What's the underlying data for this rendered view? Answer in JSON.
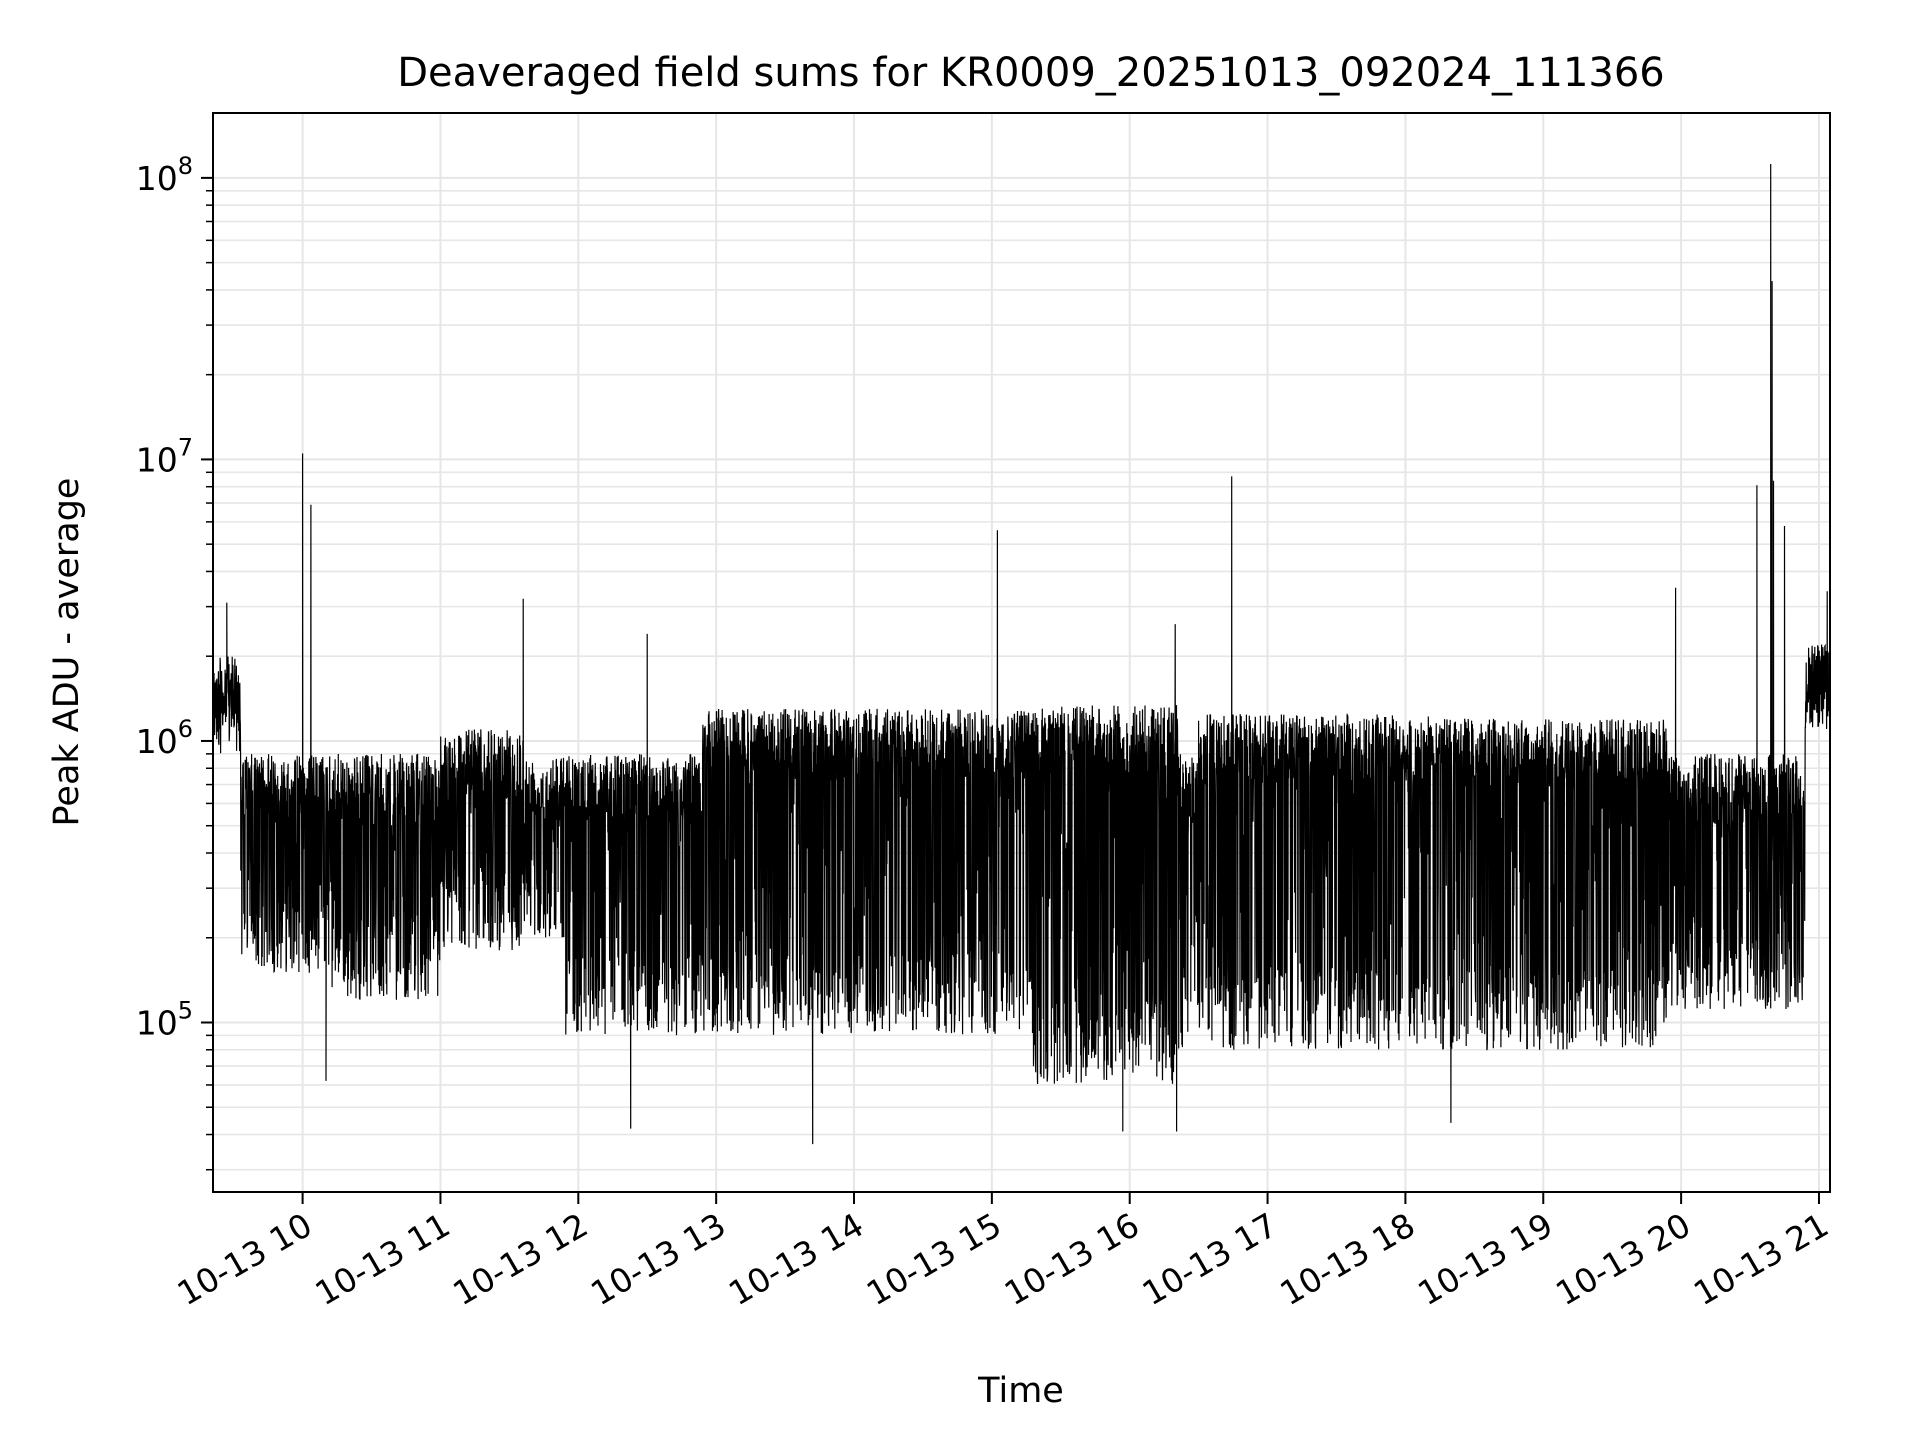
{
  "chart_data": {
    "type": "line",
    "title": "Deaveraged field sums for KR0009_20251013_092024_111366",
    "xlabel": "Time",
    "ylabel": "Peak ADU - average",
    "yscale": "log",
    "ylim": [
      25000,
      170000000
    ],
    "xlim_hours": [
      9.35,
      21.08
    ],
    "grid": true,
    "line_color": "#000000",
    "grid_color": "#e6e6e6",
    "x_ticks": [
      {
        "hour": 10,
        "label": "10-13 10"
      },
      {
        "hour": 11,
        "label": "10-13 11"
      },
      {
        "hour": 12,
        "label": "10-13 12"
      },
      {
        "hour": 13,
        "label": "10-13 13"
      },
      {
        "hour": 14,
        "label": "10-13 14"
      },
      {
        "hour": 15,
        "label": "10-13 15"
      },
      {
        "hour": 16,
        "label": "10-13 16"
      },
      {
        "hour": 17,
        "label": "10-13 17"
      },
      {
        "hour": 18,
        "label": "10-13 18"
      },
      {
        "hour": 19,
        "label": "10-13 19"
      },
      {
        "hour": 20,
        "label": "10-13 20"
      },
      {
        "hour": 21,
        "label": "10-13 21"
      }
    ],
    "y_ticks": [
      {
        "value": 100000,
        "base": "10",
        "exp": "5"
      },
      {
        "value": 1000000,
        "base": "10",
        "exp": "6"
      },
      {
        "value": 10000000,
        "base": "10",
        "exp": "7"
      },
      {
        "value": 100000000,
        "base": "10",
        "exp": "8"
      }
    ],
    "segments": [
      {
        "start": 9.35,
        "end": 9.55,
        "high": 2000000,
        "low": 900000
      },
      {
        "start": 9.55,
        "end": 10.2,
        "high": 900000,
        "low": 150000
      },
      {
        "start": 10.2,
        "end": 11.0,
        "high": 900000,
        "low": 120000
      },
      {
        "start": 11.0,
        "end": 11.6,
        "high": 1100000,
        "low": 180000
      },
      {
        "start": 11.6,
        "end": 11.9,
        "high": 900000,
        "low": 200000
      },
      {
        "start": 11.9,
        "end": 12.9,
        "high": 900000,
        "low": 90000
      },
      {
        "start": 12.9,
        "end": 15.3,
        "high": 1300000,
        "low": 90000
      },
      {
        "start": 15.3,
        "end": 16.35,
        "high": 1350000,
        "low": 60000
      },
      {
        "start": 16.35,
        "end": 16.5,
        "high": 900000,
        "low": 80000
      },
      {
        "start": 16.5,
        "end": 18.3,
        "high": 1250000,
        "low": 80000
      },
      {
        "start": 18.3,
        "end": 19.9,
        "high": 1200000,
        "low": 80000
      },
      {
        "start": 19.9,
        "end": 20.9,
        "high": 900000,
        "low": 110000
      },
      {
        "start": 20.9,
        "end": 21.08,
        "high": 2200000,
        "low": 1100000
      }
    ],
    "spikes": [
      {
        "hour": 9.45,
        "value": 3100000
      },
      {
        "hour": 10.0,
        "value": 10500000
      },
      {
        "hour": 10.06,
        "value": 6900000
      },
      {
        "hour": 11.6,
        "value": 3200000
      },
      {
        "hour": 12.5,
        "value": 2400000
      },
      {
        "hour": 15.04,
        "value": 5600000
      },
      {
        "hour": 16.33,
        "value": 2600000
      },
      {
        "hour": 16.74,
        "value": 8700000
      },
      {
        "hour": 19.96,
        "value": 3500000
      },
      {
        "hour": 20.55,
        "value": 8100000
      },
      {
        "hour": 20.65,
        "value": 112000000
      },
      {
        "hour": 20.66,
        "value": 43000000
      },
      {
        "hour": 20.67,
        "value": 8400000
      },
      {
        "hour": 20.75,
        "value": 5800000
      },
      {
        "hour": 21.06,
        "value": 3400000
      }
    ],
    "dips": [
      {
        "hour": 10.17,
        "value": 62000
      },
      {
        "hour": 12.38,
        "value": 42000
      },
      {
        "hour": 13.7,
        "value": 37000
      },
      {
        "hour": 15.95,
        "value": 41000
      },
      {
        "hour": 16.34,
        "value": 41000
      },
      {
        "hour": 18.33,
        "value": 44000
      }
    ]
  }
}
